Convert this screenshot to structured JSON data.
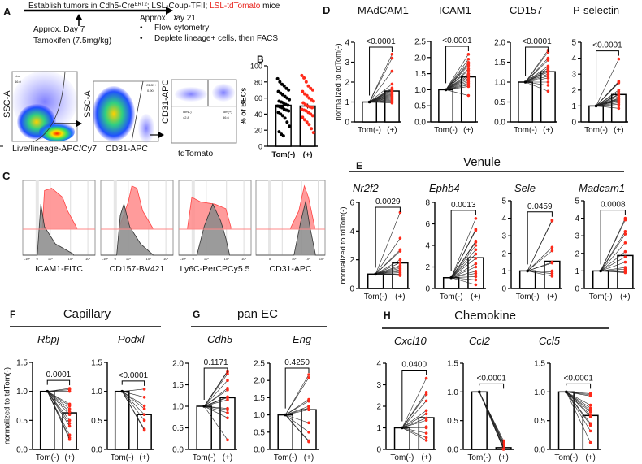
{
  "colors": {
    "red": "#ff2a1a",
    "tomato_text": "#e8231c",
    "hist_red": "#ff8a8a",
    "hist_gray": "#8a8a8a",
    "black": "#000000"
  },
  "panelA": {
    "letter": "A",
    "title_prefix": "Establish tumors in Cdh5-Cre",
    "title_sup": "ERT2",
    "title_mid": "; LSL-Coup-TFII; ",
    "title_red": "LSL-tdTomato",
    "title_suffix": " mice",
    "day7_line1": "Approx. Day 7",
    "day7_line2": "Tamoxifen (7.5mg/kg)",
    "day21": "Approx. Day 21.",
    "bullets": [
      "Flow cytometry",
      "Deplete lineage+ cells, then FACS"
    ],
    "plots": [
      {
        "ylabel": "SSC-A",
        "xlabel": "Live/lineage-APC/Cy7",
        "gate": [
          "Live",
          "46.0"
        ]
      },
      {
        "ylabel": "SSC-A",
        "xlabel": "CD31-APC",
        "gate": [
          "CD31+",
          "0.90"
        ]
      },
      {
        "ylabel": "CD31-APC",
        "xlabel": "tdTomato",
        "gate_left": [
          "Tom(-)",
          "42.8"
        ],
        "gate_right": [
          "Tom(+)",
          "56.6"
        ]
      }
    ]
  },
  "panelC": {
    "letter": "C",
    "ticks": [
      "-10³",
      "0",
      "10³",
      "10⁴",
      "10⁵"
    ],
    "ticks_cd31": [
      "0",
      "10²",
      "10⁴",
      "10⁵"
    ],
    "markers": [
      "ICAM1-FITC",
      "CD157-BV421",
      "Ly6C-PerCPCy5.5",
      "CD31-APC"
    ]
  },
  "groups": {
    "E": {
      "letter": "E",
      "title": "Venule"
    },
    "F": {
      "letter": "F",
      "title": "Capillary"
    },
    "G": {
      "letter": "G",
      "title": "pan EC"
    },
    "H": {
      "letter": "H",
      "title": "Chemokine"
    }
  },
  "chart_data": [
    {
      "id": "B",
      "letter": "B",
      "type": "bar",
      "title": "",
      "ylabel": "% of BECs",
      "ylim": [
        0,
        100
      ],
      "yticks": [
        "0",
        "20",
        "40",
        "60",
        "80",
        "100"
      ],
      "categories": [
        "Tom(-)",
        "(+)"
      ],
      "series": [
        {
          "name": "Tom(-)",
          "mean": 51,
          "points": [
            84,
            80,
            77,
            75,
            72,
            70,
            68,
            66,
            64,
            62,
            60,
            58,
            56,
            55,
            54,
            52,
            51,
            50,
            49,
            48,
            46,
            45,
            44,
            42,
            40,
            38,
            35,
            30,
            25,
            18,
            15,
            13
          ]
        },
        {
          "name": "(+)",
          "mean": 50,
          "points": [
            88,
            85,
            80,
            75,
            72,
            70,
            68,
            65,
            63,
            60,
            58,
            56,
            54,
            52,
            50,
            49,
            48,
            46,
            45,
            44,
            42,
            40,
            38,
            36,
            33,
            30,
            27,
            22,
            17
          ]
        }
      ]
    },
    {
      "id": "D1",
      "letter": "D",
      "type": "paired-bar",
      "title": "MAdCAM1",
      "italic": false,
      "ylabel": "normalized to tdTom(-)",
      "ylim": [
        0,
        4
      ],
      "yticks": [
        "0",
        "1",
        "2",
        "3",
        "4"
      ],
      "categories": [
        "Tom(-)",
        "(+)"
      ],
      "baseline": 1,
      "mean_plus": 1.55,
      "pvalue": "<0.0001",
      "plus": [
        3.4,
        3.2,
        2.55,
        1.9,
        1.7,
        1.65,
        1.6,
        1.55,
        1.5,
        1.45,
        1.4,
        1.35,
        1.3,
        1.25,
        1.2,
        1.15,
        1.1,
        1.05,
        1.0,
        0.95
      ]
    },
    {
      "id": "D2",
      "type": "paired-bar",
      "title": "ICAM1",
      "italic": false,
      "ylim": [
        0,
        2.5
      ],
      "yticks": [
        "0.0",
        "0.5",
        "1.0",
        "1.5",
        "2.0",
        "2.5"
      ],
      "categories": [
        "Tom(-)",
        "(+)"
      ],
      "baseline": 1,
      "mean_plus": 1.4,
      "pvalue": "<0.0001",
      "plus": [
        2.1,
        1.95,
        1.85,
        1.8,
        1.75,
        1.65,
        1.6,
        1.5,
        1.45,
        1.4,
        1.35,
        1.3,
        1.25,
        1.2,
        1.15,
        1.1,
        0.82
      ]
    },
    {
      "id": "D3",
      "type": "paired-bar",
      "title": "CD157",
      "italic": false,
      "ylim": [
        0,
        2.0
      ],
      "yticks": [
        "0.0",
        "0.5",
        "1.0",
        "1.5",
        "2.0"
      ],
      "categories": [
        "Tom(-)",
        "(+)"
      ],
      "baseline": 1,
      "mean_plus": 1.26,
      "pvalue": "<0.0001",
      "plus": [
        1.8,
        1.75,
        1.6,
        1.55,
        1.4,
        1.35,
        1.3,
        1.28,
        1.25,
        1.2,
        1.15,
        1.1,
        1.0,
        0.92,
        0.77
      ]
    },
    {
      "id": "D4",
      "type": "paired-bar",
      "title": "P-selectin",
      "italic": false,
      "ylim": [
        0,
        5
      ],
      "yticks": [
        "0",
        "1",
        "2",
        "3",
        "4",
        "5"
      ],
      "categories": [
        "Tom(-)",
        "(+)"
      ],
      "baseline": 1,
      "mean_plus": 1.72,
      "pvalue": "<0.0001",
      "plus": [
        3.95,
        2.55,
        2.5,
        2.45,
        2.0,
        1.9,
        1.75,
        1.7,
        1.6,
        1.5,
        1.45,
        1.4,
        1.35,
        1.3,
        1.2,
        1.1,
        1.0,
        0.85
      ]
    },
    {
      "id": "E1",
      "type": "paired-bar",
      "title": "Nr2f2",
      "italic": true,
      "ylabel": "normalized to tdTom(-)",
      "ylim": [
        0,
        6
      ],
      "yticks": [
        "0",
        "2",
        "4",
        "6"
      ],
      "categories": [
        "Tom(-)",
        "(+)"
      ],
      "baseline": 1,
      "mean_plus": 1.78,
      "pvalue": "0.0029",
      "plus": [
        5.3,
        3.5,
        2.7,
        2.6,
        2.0,
        1.8,
        1.6,
        1.5,
        1.4,
        1.3,
        1.2,
        1.1,
        1.0,
        0.95,
        0.9
      ]
    },
    {
      "id": "E2",
      "type": "paired-bar",
      "title": "Ephb4",
      "italic": true,
      "ylim": [
        0,
        8
      ],
      "yticks": [
        "0",
        "2",
        "4",
        "6",
        "8"
      ],
      "categories": [
        "Tom(-)",
        "(+)"
      ],
      "baseline": 1,
      "mean_plus": 2.85,
      "pvalue": "0.0013",
      "plus": [
        6.5,
        5.5,
        5.4,
        4.4,
        4.3,
        4.0,
        3.6,
        3.2,
        2.8,
        2.3,
        2.0,
        1.6,
        1.4,
        1.1,
        0.8,
        0.35
      ]
    },
    {
      "id": "E3",
      "type": "paired-bar",
      "title": "Sele",
      "italic": true,
      "ylim": [
        0,
        5
      ],
      "yticks": [
        "0",
        "1",
        "2",
        "3",
        "4",
        "5"
      ],
      "categories": [
        "Tom(-)",
        "(+)"
      ],
      "baseline": 1,
      "mean_plus": 1.55,
      "pvalue": "0.0459",
      "plus": [
        3.9,
        3.85,
        2.35,
        2.15,
        1.5,
        1.45,
        1.0,
        0.95,
        0.85,
        0.7
      ]
    },
    {
      "id": "E4",
      "type": "paired-bar",
      "title": "Madcam1",
      "italic": true,
      "ylim": [
        0,
        5
      ],
      "yticks": [
        "0",
        "1",
        "2",
        "3",
        "4",
        "5"
      ],
      "categories": [
        "Tom(-)",
        "(+)"
      ],
      "baseline": 1,
      "mean_plus": 1.88,
      "pvalue": "0.0008",
      "plus": [
        4.0,
        3.9,
        3.25,
        3.1,
        2.6,
        2.1,
        1.8,
        1.5,
        1.2,
        1.1,
        1.0,
        0.95,
        0.9
      ]
    },
    {
      "id": "F1",
      "type": "paired-bar",
      "title": "Rbpj",
      "italic": true,
      "ylabel": "normalized to tdTom(-)",
      "ylim": [
        0,
        1.5
      ],
      "yticks": [
        "0.0",
        "0.5",
        "1.0",
        "1.5"
      ],
      "categories": [
        "Tom(-)",
        "(+)"
      ],
      "baseline": 1,
      "mean_plus": 0.63,
      "pvalue": "0.0001",
      "plus": [
        1.05,
        1.03,
        1.0,
        0.78,
        0.75,
        0.7,
        0.65,
        0.6,
        0.5,
        0.45,
        0.4,
        0.25,
        0.2,
        0.17
      ]
    },
    {
      "id": "F2",
      "type": "paired-bar",
      "title": "Podxl",
      "italic": true,
      "ylim": [
        0,
        1.5
      ],
      "yticks": [
        "0.0",
        "0.5",
        "1.0",
        "1.5"
      ],
      "categories": [
        "Tom(-)",
        "(+)"
      ],
      "baseline": 1,
      "mean_plus": 0.6,
      "pvalue": "<0.0001",
      "plus": [
        1.04,
        0.9,
        0.75,
        0.7,
        0.6,
        0.5,
        0.35,
        0.33
      ]
    },
    {
      "id": "G1",
      "type": "paired-bar",
      "title": "Cdh5",
      "italic": true,
      "ylim": [
        0,
        2.0
      ],
      "yticks": [
        "0.0",
        "0.5",
        "1.0",
        "1.5",
        "2.0"
      ],
      "categories": [
        "Tom(-)",
        "(+)"
      ],
      "baseline": 1,
      "mean_plus": 1.2,
      "pvalue": "0.1171",
      "plus": [
        1.82,
        1.8,
        1.75,
        1.6,
        1.42,
        1.38,
        1.22,
        1.2,
        1.15,
        0.95,
        0.92,
        0.85,
        0.73,
        0.22
      ]
    },
    {
      "id": "G2",
      "type": "paired-bar",
      "title": "Eng",
      "italic": true,
      "ylim": [
        0,
        2.5
      ],
      "yticks": [
        "0.0",
        "0.5",
        "1.0",
        "1.5",
        "2.0",
        "2.5"
      ],
      "categories": [
        "Tom(-)",
        "(+)"
      ],
      "baseline": 1,
      "mean_plus": 1.15,
      "pvalue": "0.4250",
      "plus": [
        2.17,
        2.08,
        1.45,
        1.4,
        1.25,
        1.2,
        1.15,
        0.77,
        0.5,
        0.25,
        0.22
      ]
    },
    {
      "id": "H1",
      "type": "paired-bar",
      "title": "Cxcl10",
      "italic": true,
      "ylim": [
        0,
        4
      ],
      "yticks": [
        "0",
        "1",
        "2",
        "3",
        "4"
      ],
      "categories": [
        "Tom(-)",
        "(+)"
      ],
      "baseline": 1,
      "mean_plus": 1.47,
      "pvalue": "0.0400",
      "plus": [
        3.3,
        2.65,
        2.55,
        2.25,
        1.8,
        1.65,
        1.45,
        1.35,
        1.05,
        1.0,
        0.75,
        0.55,
        0.42
      ]
    },
    {
      "id": "H2",
      "type": "paired-bar",
      "title": "Ccl2",
      "italic": true,
      "ylim": [
        0,
        1.5
      ],
      "yticks": [
        "0.0",
        "0.5",
        "1.0",
        "1.5"
      ],
      "categories": [
        "Tom(-)",
        "(+)"
      ],
      "baseline": 1,
      "mean_plus": 0.03,
      "pvalue": "<0.0001",
      "plus": [
        0.15,
        0.12,
        0.1,
        0.08,
        0.05,
        0.03,
        0.02,
        0.01,
        0.0
      ]
    },
    {
      "id": "H3",
      "type": "paired-bar",
      "title": "Ccl5",
      "italic": true,
      "ylim": [
        0,
        1.5
      ],
      "yticks": [
        "0.0",
        "0.5",
        "1.0",
        "1.5"
      ],
      "categories": [
        "Tom(-)",
        "(+)"
      ],
      "baseline": 1,
      "mean_plus": 0.59,
      "pvalue": "<0.0001",
      "plus": [
        0.97,
        0.95,
        0.93,
        0.77,
        0.72,
        0.68,
        0.65,
        0.6,
        0.57,
        0.45,
        0.42,
        0.32,
        0.12
      ]
    }
  ]
}
